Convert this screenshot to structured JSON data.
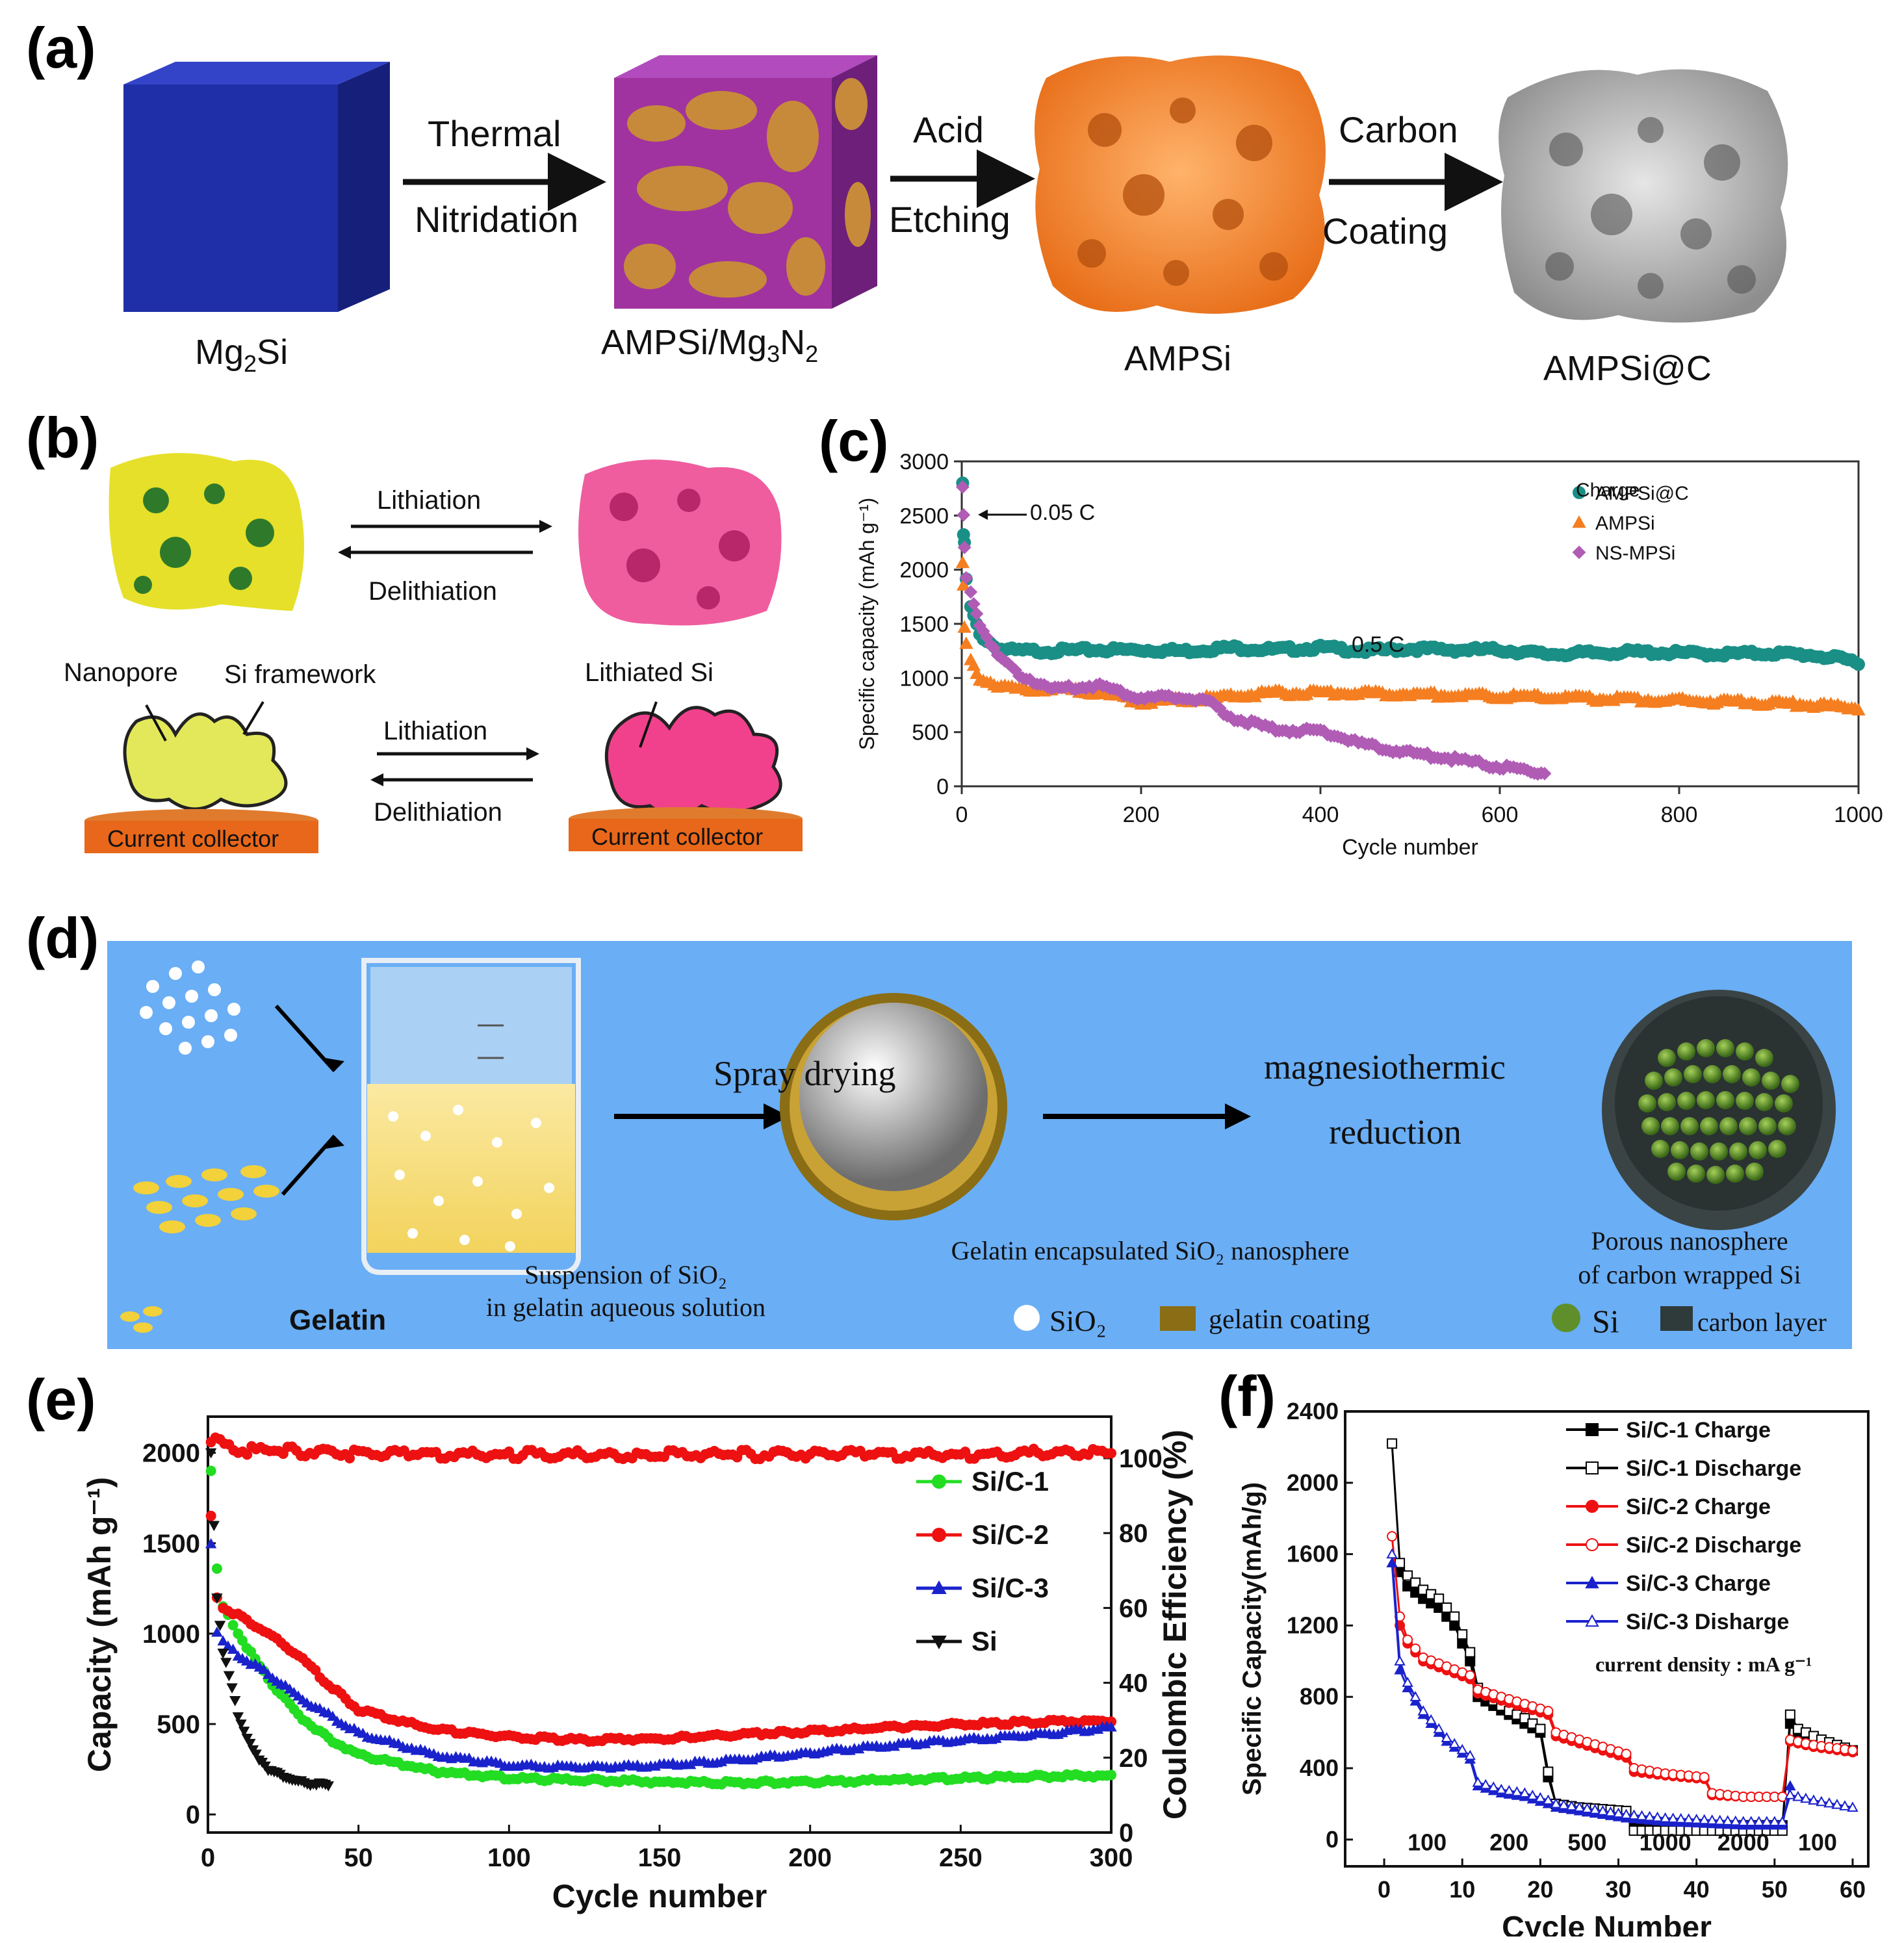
{
  "panels": {
    "a": {
      "label": "(a)",
      "steps": [
        "Mg2Si",
        "AMPSi/Mg3N2",
        "AMPSi",
        "AMPSi@C"
      ],
      "step_subs": [
        [
          "Mg",
          "2",
          "Si",
          ""
        ],
        [
          "AMPSi/Mg",
          "3",
          "N",
          "2"
        ],
        [
          "AMPSi",
          "",
          "",
          ""
        ],
        [
          "AMPSi@C",
          "",
          "",
          ""
        ]
      ],
      "arrows": [
        [
          "Thermal",
          "Nitridation"
        ],
        [
          "Acid",
          "Etching"
        ],
        [
          "Carbon",
          "Coating"
        ]
      ]
    },
    "b": {
      "label": "(b)",
      "top_arrow_1": "Lithiation",
      "top_arrow_2": "Delithiation",
      "bottom_arrow_1": "Lithiation",
      "bottom_arrow_2": "Delithiation",
      "nanopore": "Nanopore",
      "si_framework": "Si framework",
      "lithiated_si": "Lithiated Si",
      "collector": "Current collector"
    },
    "c": {
      "label": "(c)",
      "legend_title": "Charge",
      "annot_005": "0.05 C",
      "annot_05": "0.5 C",
      "ylabel": "Specific capacity (mAh g⁻¹)",
      "xlabel": "Cycle number"
    },
    "d": {
      "label": "(d)",
      "spray": "Spray drying",
      "magnesio": "magnesiothermic",
      "reduction": "reduction",
      "suspension_1": "Suspension of SiO₂",
      "suspension_2": "in gelatin aqueous solution",
      "gelatin_caption": "Gelatin encapsulated SiO₂ nanosphere",
      "porous_1": "Porous nanosphere",
      "porous_2": "of carbon wrapped Si",
      "gelatin": "Gelatin",
      "legend_sio2": "SiO₂",
      "legend_gelatin": "gelatin coating",
      "legend_si": "Si",
      "legend_carbon": "carbon layer",
      "colors": {
        "background": "#6bb0f5",
        "arrow": "#000000",
        "gelatin": "#f2d13a",
        "si": "#5f8f2a"
      }
    },
    "e": {
      "label": "(e)",
      "ylabel": "Capacity (mAh g⁻¹)",
      "y2label": "Coulombic Efficiency (%)",
      "xlabel": "Cycle number"
    },
    "f": {
      "label": "(f)",
      "ylabel": "Specific Capacity(mAh/g)",
      "xlabel": "Cycle Number",
      "current_density": "current density :  mA g⁻¹",
      "rate_labels": [
        "100",
        "200",
        "500",
        "1000",
        "2000",
        "100"
      ]
    }
  },
  "chart_data": [
    {
      "id": "c",
      "type": "line",
      "xlabel": "Cycle number",
      "ylabel": "Specific capacity (mAh g-1)",
      "xlim": [
        0,
        1000
      ],
      "ylim": [
        0,
        3000
      ],
      "xticks": [
        0,
        200,
        400,
        600,
        800,
        1000
      ],
      "yticks": [
        0,
        500,
        1000,
        1500,
        2000,
        2500,
        3000
      ],
      "legend_title": "Charge",
      "series": [
        {
          "name": "AMPSi@C",
          "color": "#1a8f86",
          "marker": "circle",
          "x": [
            1,
            2,
            3,
            5,
            10,
            20,
            40,
            60,
            100,
            150,
            200,
            250,
            300,
            350,
            400,
            450,
            500,
            550,
            600,
            650,
            700,
            750,
            800,
            850,
            900,
            950,
            1000
          ],
          "y": [
            2800,
            2300,
            2250,
            1900,
            1650,
            1400,
            1270,
            1250,
            1250,
            1260,
            1260,
            1250,
            1280,
            1260,
            1280,
            1250,
            1270,
            1260,
            1260,
            1220,
            1230,
            1240,
            1230,
            1220,
            1230,
            1210,
            1150
          ]
        },
        {
          "name": "AMPSi",
          "color": "#f57e20",
          "marker": "triangle",
          "x": [
            1,
            2,
            3,
            5,
            10,
            20,
            40,
            60,
            100,
            150,
            200,
            250,
            300,
            350,
            400,
            450,
            500,
            550,
            600,
            650,
            700,
            750,
            800,
            850,
            900,
            950,
            1000
          ],
          "y": [
            2050,
            1850,
            1450,
            1300,
            1150,
            1000,
            930,
            900,
            900,
            870,
            780,
            800,
            830,
            860,
            860,
            860,
            850,
            840,
            830,
            820,
            810,
            800,
            790,
            780,
            770,
            750,
            720
          ]
        },
        {
          "name": "NS-MPSi",
          "color": "#b05cb5",
          "marker": "diamond",
          "x": [
            1,
            2,
            3,
            5,
            10,
            20,
            40,
            60,
            100,
            150,
            200,
            250,
            280,
            300,
            350,
            400,
            450,
            500,
            550,
            600,
            650
          ],
          "y": [
            2750,
            2500,
            2200,
            1950,
            1800,
            1500,
            1200,
            1050,
            900,
            930,
            820,
            820,
            760,
            640,
            520,
            510,
            380,
            310,
            250,
            180,
            120
          ]
        }
      ]
    },
    {
      "id": "e",
      "type": "line",
      "xlabel": "Cycle number",
      "ylabel": "Capacity (mAh g-1)",
      "y2label": "Coulombic Efficiency (%)",
      "xlim": [
        0,
        300
      ],
      "ylim": [
        0,
        2000
      ],
      "y2lim": [
        0,
        100
      ],
      "xticks": [
        0,
        50,
        100,
        150,
        200,
        250,
        300
      ],
      "yticks": [
        0,
        500,
        1000,
        1500,
        2000
      ],
      "y2ticks": [
        0,
        20,
        40,
        60,
        80,
        100
      ],
      "series": [
        {
          "name": "Si/C-1",
          "color": "#22dd22",
          "marker": "circle",
          "x": [
            1,
            3,
            5,
            10,
            20,
            30,
            40,
            50,
            75,
            100,
            125,
            150,
            175,
            200,
            225,
            250,
            275,
            300
          ],
          "y": [
            1900,
            1350,
            1150,
            1000,
            750,
            550,
            420,
            330,
            240,
            200,
            190,
            180,
            175,
            180,
            190,
            200,
            210,
            215
          ]
        },
        {
          "name": "Si/C-2",
          "color": "#ee1111",
          "marker": "circle",
          "x": [
            1,
            3,
            5,
            10,
            20,
            30,
            40,
            50,
            75,
            100,
            125,
            150,
            175,
            200,
            225,
            250,
            275,
            300
          ],
          "y": [
            1650,
            1200,
            1150,
            1100,
            1000,
            880,
            720,
            580,
            470,
            430,
            410,
            420,
            440,
            460,
            480,
            500,
            510,
            520
          ]
        },
        {
          "name": "Si/C-3",
          "color": "#1a22cc",
          "marker": "triangle",
          "x": [
            1,
            3,
            5,
            10,
            20,
            30,
            40,
            50,
            75,
            100,
            125,
            150,
            175,
            200,
            225,
            250,
            275,
            300
          ],
          "y": [
            1500,
            1000,
            950,
            880,
            780,
            650,
            550,
            450,
            330,
            270,
            260,
            270,
            300,
            340,
            380,
            410,
            440,
            480
          ]
        },
        {
          "name": "Si",
          "color": "#111111",
          "marker": "down-triangle",
          "x": [
            1,
            3,
            5,
            8,
            10,
            15,
            20,
            25,
            30,
            35,
            40
          ],
          "y": [
            2000,
            1200,
            900,
            700,
            550,
            350,
            250,
            210,
            180,
            170,
            160
          ]
        },
        {
          "name": "Coulombic Efficiency",
          "color": "#ee1111",
          "marker": "circle",
          "axis": "y2",
          "x": [
            1,
            10,
            25,
            50,
            100,
            150,
            200,
            250,
            300
          ],
          "y": [
            105,
            102,
            102,
            101,
            101,
            101,
            101,
            101,
            102
          ]
        }
      ]
    },
    {
      "id": "f",
      "type": "line",
      "xlabel": "Cycle Number",
      "ylabel": "Specific Capacity(mAh/g)",
      "xlim": [
        -5,
        62
      ],
      "ylim": [
        -150,
        2400
      ],
      "xticks": [
        0,
        10,
        20,
        30,
        40,
        50,
        60
      ],
      "yticks": [
        0,
        400,
        800,
        1200,
        1600,
        2000,
        2400
      ],
      "series": [
        {
          "name": "Si/C-1 Charge",
          "color": "#000000",
          "marker": "filled-square",
          "x": [
            2,
            3,
            5,
            7,
            9,
            11,
            12,
            14,
            16,
            18,
            20,
            21,
            22,
            25,
            28,
            31,
            32,
            36,
            41,
            46,
            51,
            52,
            53,
            56,
            60
          ],
          "y": [
            1500,
            1420,
            1350,
            1300,
            1200,
            1000,
            800,
            750,
            700,
            650,
            600,
            350,
            200,
            180,
            170,
            160,
            80,
            80,
            80,
            80,
            80,
            650,
            600,
            550,
            500
          ]
        },
        {
          "name": "Si/C-1 Discharge",
          "color": "#000000",
          "marker": "open-square",
          "x": [
            1,
            2,
            3,
            5,
            7,
            9,
            11,
            12,
            14,
            16,
            18,
            20,
            21,
            22,
            25,
            28,
            31,
            32,
            36,
            41,
            46,
            51,
            52,
            53,
            56,
            60
          ],
          "y": [
            2220,
            1550,
            1480,
            1400,
            1350,
            1250,
            1050,
            850,
            780,
            720,
            680,
            620,
            380,
            200,
            180,
            170,
            160,
            50,
            50,
            50,
            50,
            50,
            700,
            620,
            560,
            500
          ]
        },
        {
          "name": "Si/C-2 Charge",
          "color": "#ee1111",
          "marker": "filled-circle",
          "x": [
            2,
            3,
            5,
            8,
            11,
            12,
            15,
            18,
            21,
            22,
            25,
            28,
            31,
            32,
            36,
            41,
            42,
            46,
            51,
            52,
            55,
            60
          ],
          "y": [
            1200,
            1100,
            1000,
            950,
            900,
            820,
            780,
            740,
            700,
            580,
            540,
            500,
            460,
            380,
            360,
            340,
            250,
            240,
            240,
            550,
            520,
            490
          ]
        },
        {
          "name": "Si/C-2 Discharge",
          "color": "#ee1111",
          "marker": "open-circle",
          "x": [
            1,
            2,
            3,
            5,
            8,
            11,
            12,
            15,
            18,
            21,
            22,
            25,
            28,
            31,
            32,
            36,
            41,
            42,
            46,
            51,
            52,
            55,
            60
          ],
          "y": [
            1700,
            1250,
            1120,
            1020,
            970,
            920,
            840,
            800,
            760,
            720,
            600,
            560,
            520,
            480,
            400,
            370,
            350,
            260,
            240,
            240,
            560,
            530,
            500
          ]
        },
        {
          "name": "Si/C-3 Charge",
          "color": "#1a22cc",
          "marker": "filled-triangle",
          "x": [
            1,
            2,
            3,
            5,
            8,
            11,
            12,
            15,
            18,
            21,
            22,
            25,
            28,
            31,
            36,
            41,
            46,
            51,
            52
          ],
          "y": [
            1550,
            950,
            850,
            700,
            550,
            450,
            300,
            260,
            240,
            200,
            180,
            160,
            140,
            120,
            100,
            90,
            80,
            80,
            300
          ]
        },
        {
          "name": "Si/C-3 Disharge",
          "color": "#1a22cc",
          "marker": "open-triangle",
          "x": [
            1,
            2,
            3,
            5,
            8,
            11,
            12,
            15,
            18,
            21,
            22,
            25,
            28,
            31,
            36,
            41,
            46,
            51,
            52,
            55,
            60
          ],
          "y": [
            1600,
            1000,
            880,
            720,
            570,
            470,
            320,
            280,
            260,
            220,
            200,
            180,
            160,
            140,
            120,
            110,
            100,
            100,
            250,
            220,
            180
          ]
        }
      ]
    }
  ]
}
